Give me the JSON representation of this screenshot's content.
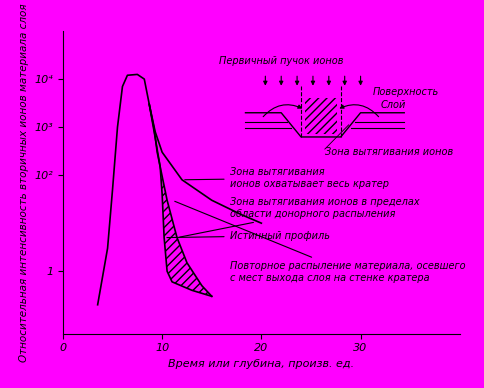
{
  "chart_data": {
    "type": "line",
    "x_label": "Время или глубина, произв. ед.",
    "y_label": "Относительная интенсивность вторичных ионов материала слоя",
    "log": "y",
    "color": "#000000",
    "xlim": [
      0,
      40
    ],
    "ylim": [
      0.05,
      100000
    ],
    "xticks": [
      0,
      10,
      20,
      30
    ],
    "yticks": [
      1,
      {
        "value": 100,
        "label": "10²"
      },
      {
        "value": 1000,
        "label": "10³"
      },
      {
        "value": 10000,
        "label": "10⁴"
      }
    ],
    "series": [
      {
        "x": [
          3.5,
          4.5,
          5,
          5.5,
          6,
          6.5,
          7.5,
          8.2,
          8.7,
          9.3,
          10,
          12,
          15,
          18,
          20
        ],
        "values": [
          0.2,
          3,
          50,
          1000,
          7000,
          12000,
          12500,
          10000,
          3000,
          800,
          300,
          80,
          30,
          15,
          10
        ],
        "annotation": "Зона вытягивания\nионов охватывает весь кратер"
      },
      {
        "x": [
          8.7,
          9.3,
          9.8,
          10.5,
          11.5,
          12.5,
          14,
          15
        ],
        "values": [
          3000,
          600,
          150,
          30,
          5,
          1.5,
          0.5,
          0.3
        ],
        "annotation": "Зона вытягивания ионов в пределах\nобласти донорного распыления"
      },
      {
        "x": [
          8.7,
          9.2,
          9.5,
          9.8,
          10,
          10.2,
          10.5,
          11,
          13,
          15
        ],
        "values": [
          3000,
          900,
          300,
          150,
          40,
          5,
          1,
          0.6,
          0.4,
          0.3
        ],
        "annotation": "Истинный профиль"
      }
    ],
    "shaded_annotation": "Повторное распыление материала, осевшего\nс мест выхода слоя на стенке кратера",
    "inset": {
      "beam": "Первичный пучок ионов",
      "surface": "Поверхность",
      "layer": "Слой",
      "zone": "Зона вытягивания ионов"
    }
  }
}
